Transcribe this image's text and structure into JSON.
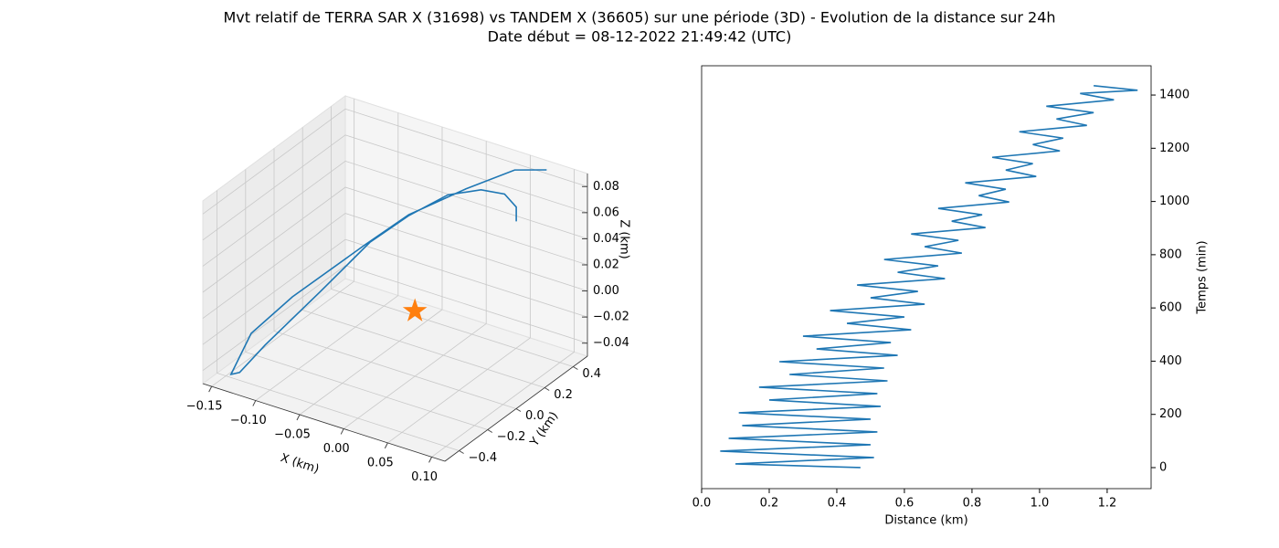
{
  "title": "Mvt relatif de TERRA SAR X (31698) vs TANDEM X (36605) sur une période (3D) - Evolution de la distance sur 24h",
  "subtitle": "Date début = 08-12-2022 21:49:42 (UTC)",
  "chart_data": [
    {
      "type": "line3d",
      "color": "#1f77b4",
      "x": [
        0.069,
        0.034,
        -0.004,
        -0.041,
        -0.063,
        -0.094,
        -0.107,
        -0.128,
        -0.119,
        -0.103,
        -0.083,
        -0.066,
        -0.04,
        -0.016,
        0.009,
        0.028,
        0.04,
        0.04
      ],
      "y": [
        0.498,
        0.49,
        0.381,
        0.21,
        0.04,
        -0.279,
        -0.488,
        -0.5,
        -0.495,
        -0.416,
        -0.154,
        0.092,
        0.206,
        0.33,
        0.408,
        0.456,
        0.464,
        0.464
      ],
      "z": [
        0.083,
        0.076,
        0.062,
        0.048,
        0.034,
        0.013,
        -0.001,
        -0.036,
        -0.033,
        -0.015,
        0.009,
        0.031,
        0.048,
        0.059,
        0.062,
        0.059,
        0.051,
        0.04
      ],
      "marker": {
        "x": 0,
        "y": 0,
        "z": 0,
        "color": "#ff7f0e"
      },
      "xlim": [
        -0.16,
        0.115
      ],
      "ylim": [
        -0.5,
        0.5
      ],
      "zlim": [
        -0.05,
        0.09
      ],
      "xticks": [
        {
          "value": -0.15,
          "label": "−0.15"
        },
        {
          "value": -0.1,
          "label": "−0.10"
        },
        {
          "value": -0.05,
          "label": "−0.05"
        },
        {
          "value": 0,
          "label": "0.00"
        },
        {
          "value": 0.05,
          "label": "0.05"
        },
        {
          "value": 0.1,
          "label": "0.10"
        }
      ],
      "yticks": [
        {
          "value": -0.4,
          "label": "−0.4"
        },
        {
          "value": -0.2,
          "label": "−0.2"
        },
        {
          "value": 0,
          "label": "0.0"
        },
        0.2,
        0.4
      ],
      "zticks": [
        {
          "value": -0.04,
          "label": "−0.04"
        },
        {
          "value": -0.02,
          "label": "−0.02"
        },
        {
          "value": 0,
          "label": "0.00"
        },
        0.02,
        0.04,
        0.06,
        0.08
      ],
      "xlabel": "X (km)",
      "ylabel": "Y (km)",
      "zlabel": "Z (km)"
    },
    {
      "type": "line",
      "y_axis_side": "right",
      "series": [
        {
          "color": "#1f77b4",
          "x": [
            0.47,
            0.1,
            0.51,
            0.055,
            0.5,
            0.08,
            0.52,
            0.12,
            0.5,
            0.11,
            0.53,
            0.2,
            0.52,
            0.17,
            0.55,
            0.26,
            0.54,
            0.23,
            0.58,
            0.34,
            0.56,
            0.3,
            0.62,
            0.43,
            0.6,
            0.38,
            0.66,
            0.5,
            0.64,
            0.46,
            0.72,
            0.58,
            0.7,
            0.54,
            0.77,
            0.66,
            0.76,
            0.62,
            0.84,
            0.74,
            0.83,
            0.7,
            0.91,
            0.82,
            0.9,
            0.78,
            0.99,
            0.9,
            0.98,
            0.86,
            1.06,
            0.98,
            1.07,
            0.94,
            1.14,
            1.05,
            1.16,
            1.02,
            1.22,
            1.12,
            1.29,
            1.16
          ],
          "values": [
            0,
            14,
            38,
            62,
            86,
            110,
            134,
            158,
            182,
            206,
            230,
            254,
            278,
            302,
            326,
            350,
            374,
            398,
            422,
            446,
            470,
            494,
            518,
            542,
            566,
            590,
            614,
            638,
            662,
            686,
            710,
            734,
            758,
            782,
            806,
            830,
            854,
            878,
            902,
            926,
            950,
            974,
            998,
            1022,
            1046,
            1070,
            1094,
            1118,
            1142,
            1166,
            1190,
            1214,
            1238,
            1262,
            1286,
            1310,
            1334,
            1358,
            1382,
            1406,
            1418,
            1435
          ]
        }
      ],
      "xlim": [
        0,
        1.33
      ],
      "ylim": [
        -79,
        1510
      ],
      "xticks": [
        {
          "value": 0,
          "label": "0.0"
        },
        0.2,
        0.4,
        0.6,
        0.8,
        {
          "value": 1,
          "label": "1.0"
        },
        1.2
      ],
      "yticks": [
        0,
        200,
        400,
        600,
        800,
        1000,
        1200,
        1400
      ],
      "xlabel": "Distance (km)",
      "ylabel": "Temps (min)"
    }
  ]
}
